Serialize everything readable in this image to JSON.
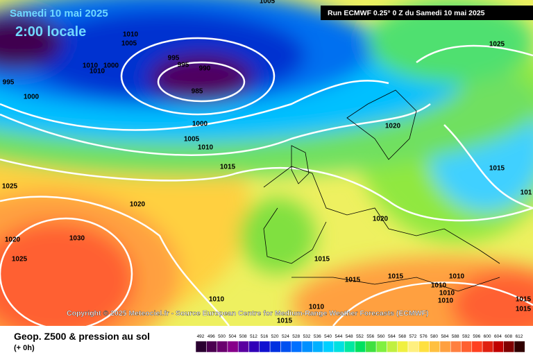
{
  "header": {
    "date": "Samedi 10 mai 2025",
    "time": "2:00 locale",
    "run": "Run ECMWF 0.25° 0 Z du Samedi 10 mai 2025"
  },
  "copyright": "Copyright © 2025 Meteociel.fr - Source European Centre for Medium-Range Weather Forecasts (ECMWF)",
  "footer": {
    "title": "Geop. Z500 & pression au sol",
    "subtitle": "(+ 0h)"
  },
  "isobar_labels": [
    1005,
    1010,
    1005,
    995,
    995,
    990,
    985,
    1010,
    1000,
    1010,
    995,
    1000,
    1000,
    1005,
    1010,
    1015,
    1020,
    1025,
    1015,
    1025,
    1020,
    1020,
    1030,
    1025,
    1020,
    1015,
    1015,
    1015,
    1010,
    1010,
    1010,
    1010,
    1010,
    1010,
    1015,
    1015,
    1015,
    101
  ],
  "legend": {
    "labels": [
      492,
      496,
      500,
      504,
      508,
      512,
      516,
      520,
      524,
      528,
      532,
      536,
      540,
      544,
      548,
      552,
      556,
      560,
      564,
      568,
      572,
      576,
      580,
      584,
      588,
      592,
      596,
      600,
      604,
      608,
      612
    ],
    "colors": [
      "#2a0030",
      "#4b0050",
      "#6a006e",
      "#87008a",
      "#5a00a0",
      "#3000b8",
      "#1010d0",
      "#0030e0",
      "#0050f0",
      "#0070ff",
      "#0090ff",
      "#00b0ff",
      "#00d0ff",
      "#00e0e0",
      "#00e8a0",
      "#00e060",
      "#40e040",
      "#80f040",
      "#c0f040",
      "#f0f040",
      "#fff080",
      "#ffe040",
      "#ffc040",
      "#ffa040",
      "#ff8040",
      "#ff6030",
      "#ff4020",
      "#e02010",
      "#c00000",
      "#800000",
      "#300000"
    ]
  }
}
